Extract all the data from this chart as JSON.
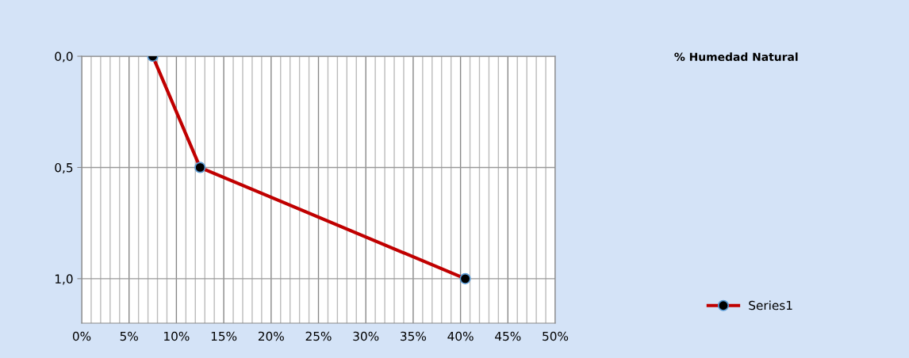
{
  "chart_data": {
    "type": "line",
    "title": "% Humedad Natural",
    "x": [
      7.5,
      12.5,
      40.5
    ],
    "series": [
      {
        "name": "Series1",
        "color": "#c00000",
        "values": [
          0.0,
          0.5,
          1.0
        ]
      }
    ],
    "xlim": [
      0,
      50
    ],
    "ylim": [
      1.2,
      0
    ],
    "xticks": [
      {
        "value": 0,
        "label": "0%"
      },
      {
        "value": 1,
        "label": null
      },
      {
        "value": 2,
        "label": null
      },
      {
        "value": 3,
        "label": null
      },
      {
        "value": 4,
        "label": null
      },
      {
        "value": 5,
        "label": "5%"
      },
      {
        "value": 6,
        "label": null
      },
      {
        "value": 7,
        "label": null
      },
      {
        "value": 8,
        "label": null
      },
      {
        "value": 9,
        "label": null
      },
      {
        "value": 10,
        "label": "10%"
      },
      {
        "value": 11,
        "label": null
      },
      {
        "value": 12,
        "label": null
      },
      {
        "value": 13,
        "label": null
      },
      {
        "value": 14,
        "label": null
      },
      {
        "value": 15,
        "label": "15%"
      },
      {
        "value": 16,
        "label": null
      },
      {
        "value": 17,
        "label": null
      },
      {
        "value": 18,
        "label": null
      },
      {
        "value": 19,
        "label": null
      },
      {
        "value": 20,
        "label": "20%"
      },
      {
        "value": 21,
        "label": null
      },
      {
        "value": 22,
        "label": null
      },
      {
        "value": 23,
        "label": null
      },
      {
        "value": 24,
        "label": null
      },
      {
        "value": 25,
        "label": "25%"
      },
      {
        "value": 26,
        "label": null
      },
      {
        "value": 27,
        "label": null
      },
      {
        "value": 28,
        "label": null
      },
      {
        "value": 29,
        "label": null
      },
      {
        "value": 30,
        "label": "30%"
      },
      {
        "value": 31,
        "label": null
      },
      {
        "value": 32,
        "label": null
      },
      {
        "value": 33,
        "label": null
      },
      {
        "value": 34,
        "label": null
      },
      {
        "value": 35,
        "label": "35%"
      },
      {
        "value": 36,
        "label": null
      },
      {
        "value": 37,
        "label": null
      },
      {
        "value": 38,
        "label": null
      },
      {
        "value": 39,
        "label": null
      },
      {
        "value": 40,
        "label": "40%"
      },
      {
        "value": 41,
        "label": null
      },
      {
        "value": 42,
        "label": null
      },
      {
        "value": 43,
        "label": null
      },
      {
        "value": 44,
        "label": null
      },
      {
        "value": 45,
        "label": "45%"
      },
      {
        "value": 46,
        "label": null
      },
      {
        "value": 47,
        "label": null
      },
      {
        "value": 48,
        "label": null
      },
      {
        "value": 49,
        "label": null
      },
      {
        "value": 50,
        "label": "50%"
      }
    ],
    "yticks": [
      {
        "value": 0,
        "label": "0,0"
      },
      {
        "value": 0.5,
        "label": "0,5"
      },
      {
        "value": 1,
        "label": "1,0"
      }
    ],
    "grid": true,
    "legend": "right",
    "marker": "circle",
    "line_style": "solid"
  }
}
